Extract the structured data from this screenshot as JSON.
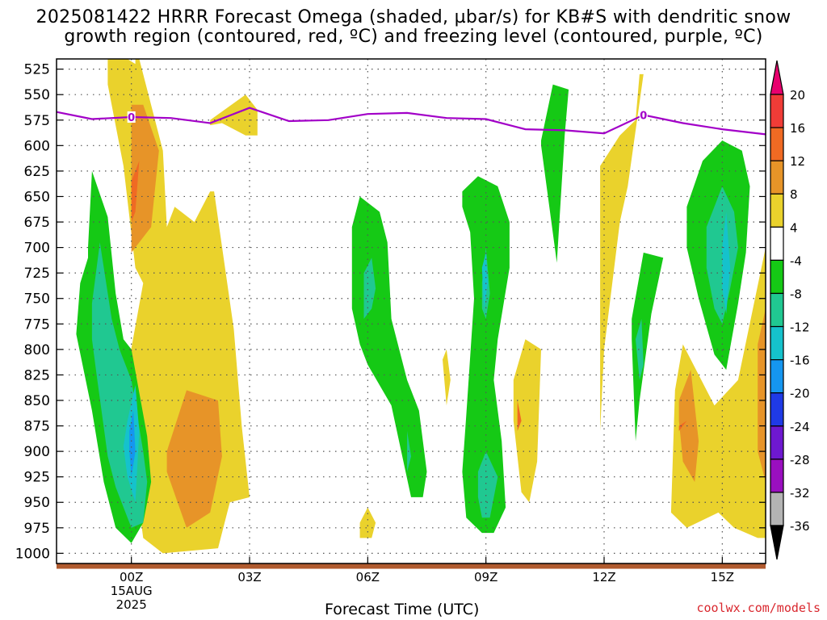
{
  "title": {
    "line1": "2025081422 HRRR Forecast Omega (shaded, µbar/s) for KB#S with dendritic snow",
    "line2": "growth region (contoured, red, ºC) and freezing level (contoured, purple, ºC)"
  },
  "credit": "coolwx.com/models",
  "chart_data": {
    "type": "heatmap",
    "title": "2025081422 HRRR Forecast Omega (shaded, µbar/s) for KB#S with dendritic snow growth region (contoured, red, ºC) and freezing level (contoured, purple, ºC)",
    "xlabel": "Forecast Time (UTC)",
    "ylabel": "",
    "x_units": "hours relative to 2025-08-15 00Z",
    "xlim": [
      -1.9,
      16.1
    ],
    "ylim": [
      1010,
      515
    ],
    "x_ticks": [
      {
        "x": 0,
        "label": "00Z",
        "sub": [
          "15AUG",
          "2025"
        ]
      },
      {
        "x": 3,
        "label": "03Z"
      },
      {
        "x": 6,
        "label": "06Z"
      },
      {
        "x": 9,
        "label": "09Z"
      },
      {
        "x": 12,
        "label": "12Z"
      },
      {
        "x": 15,
        "label": "15Z"
      }
    ],
    "y_ticks": [
      525,
      550,
      575,
      600,
      625,
      650,
      675,
      700,
      725,
      750,
      775,
      800,
      825,
      850,
      875,
      900,
      925,
      950,
      975,
      1000
    ],
    "grid": true,
    "colorbar": {
      "labels": [
        "20",
        "16",
        "12",
        "8",
        "4",
        "-4",
        "-8",
        "-12",
        "-16",
        "-20",
        "-24",
        "-28",
        "-32",
        "-36"
      ],
      "colors": [
        "#e8006e",
        "#f03c37",
        "#f06a23",
        "#e79428",
        "#ead22c",
        "#ffffff",
        "#15c915",
        "#20c891",
        "#15c2cc",
        "#1596f0",
        "#1f3ae6",
        "#6e18d0",
        "#9a0fbf",
        "#b4b4b4",
        "#000000"
      ]
    },
    "freezing_level": {
      "label": "0",
      "color": "#a200c8",
      "x": [
        -1.9,
        -1,
        0,
        1,
        2,
        3,
        4,
        5,
        6,
        7,
        8,
        9,
        10,
        11,
        12,
        13,
        14,
        15,
        16.1
      ],
      "y": [
        567,
        574,
        572,
        573,
        578,
        563,
        576,
        575,
        569,
        568,
        573,
        574,
        584,
        585,
        588,
        570,
        578,
        584,
        589
      ],
      "label_x": [
        0,
        13
      ]
    },
    "ground": {
      "color": "#b05a2e",
      "pressure": 1012
    },
    "regions": [
      {
        "level": "4",
        "x": [
          -0.6,
          -0.1,
          0.1,
          0.1,
          0.2,
          0.4,
          0.8,
          0.9,
          1.1,
          1.6,
          2.0,
          2.1,
          2.6,
          2.8,
          3.0,
          2.5,
          2.2,
          0.8,
          0.3,
          0.0,
          -0.1,
          0.3,
          0.1,
          -0.2,
          -0.6
        ],
        "y": [
          515,
          515,
          520,
          515,
          515,
          545,
          605,
          680,
          660,
          675,
          645,
          645,
          780,
          875,
          945,
          950,
          995,
          1000,
          985,
          895,
          820,
          735,
          720,
          620,
          540
        ]
      },
      {
        "level": "4",
        "x": [
          2.0,
          2.9,
          3.2,
          3.2,
          2.9,
          2.3,
          2.0
        ],
        "y": [
          575,
          550,
          565,
          590,
          590,
          578,
          580
        ]
      },
      {
        "level": "4",
        "x": [
          5.8,
          6.0,
          6.2,
          6.1,
          5.8
        ],
        "y": [
          970,
          955,
          970,
          985,
          985
        ]
      },
      {
        "level": "4",
        "x": [
          7.9,
          8.0,
          8.1,
          8.0
        ],
        "y": [
          810,
          800,
          830,
          855
        ]
      },
      {
        "level": "4",
        "x": [
          9.7,
          10.0,
          10.4,
          10.3,
          10.1,
          9.9,
          9.7
        ],
        "y": [
          830,
          790,
          800,
          910,
          950,
          940,
          870
        ]
      },
      {
        "level": "4",
        "x": [
          11.9,
          12.4,
          12.8,
          12.9,
          13.0,
          12.6,
          12.4,
          12.0,
          11.9,
          11.9
        ],
        "y": [
          620,
          590,
          575,
          530,
          530,
          640,
          675,
          800,
          880,
          760
        ]
      },
      {
        "level": "4",
        "x": [
          13.8,
          14.0,
          14.8,
          15.4,
          16.1,
          16.1,
          15.9,
          15.3,
          14.9,
          14.1,
          13.7
        ],
        "y": [
          840,
          795,
          855,
          830,
          700,
          985,
          985,
          975,
          960,
          975,
          960
        ]
      },
      {
        "level": "8",
        "x": [
          0.0,
          0.3,
          0.7,
          0.5,
          0.0
        ],
        "y": [
          560,
          560,
          605,
          680,
          705
        ]
      },
      {
        "level": "8",
        "x": [
          0.9,
          1.4,
          2.2,
          2.3,
          2.0,
          1.4,
          0.9
        ],
        "y": [
          900,
          840,
          850,
          905,
          960,
          975,
          920
        ]
      },
      {
        "level": "8",
        "x": [
          13.9,
          14.2,
          14.4,
          14.3,
          14.0,
          13.9
        ],
        "y": [
          850,
          820,
          890,
          930,
          910,
          870
        ]
      },
      {
        "level": "8",
        "x": [
          15.9,
          16.1,
          16.1,
          15.9
        ],
        "y": [
          795,
          760,
          930,
          900
        ]
      },
      {
        "level": "12",
        "x": [
          0.0,
          0.2,
          0.1,
          0.0
        ],
        "y": [
          635,
          615,
          665,
          675
        ]
      },
      {
        "level": "12",
        "x": [
          9.8,
          9.9,
          9.8
        ],
        "y": [
          850,
          870,
          880
        ]
      },
      {
        "level": "12",
        "x": [
          13.9,
          14.1,
          13.9
        ],
        "y": [
          875,
          870,
          880
        ]
      },
      {
        "level": "-4",
        "x": [
          -1.1,
          -1.0,
          -0.6,
          -0.4,
          -0.2,
          0.0,
          0.4,
          0.5,
          0.3,
          0.0,
          -0.4,
          -0.6,
          -0.7,
          -1.0,
          -1.4,
          -1.3,
          -1.1
        ],
        "y": [
          700,
          625,
          670,
          745,
          790,
          800,
          885,
          930,
          970,
          990,
          975,
          945,
          930,
          860,
          785,
          735,
          710
        ]
      },
      {
        "level": "-4",
        "x": [
          5.6,
          5.8,
          6.3,
          6.5,
          6.6,
          7.0,
          7.3,
          7.5,
          7.4,
          7.1,
          6.6,
          6.0,
          5.8,
          5.6
        ],
        "y": [
          680,
          650,
          665,
          695,
          770,
          830,
          860,
          920,
          945,
          945,
          855,
          815,
          795,
          760
        ]
      },
      {
        "level": "-4",
        "x": [
          8.4,
          8.8,
          9.3,
          9.6,
          9.6,
          9.3,
          9.2,
          9.4,
          9.5,
          9.2,
          8.9,
          8.5,
          8.4,
          8.5,
          8.7,
          8.6,
          8.4
        ],
        "y": [
          645,
          630,
          640,
          675,
          720,
          790,
          830,
          890,
          955,
          980,
          980,
          965,
          920,
          865,
          750,
          685,
          660
        ]
      },
      {
        "level": "-4",
        "x": [
          10.4,
          10.7,
          11.1,
          11.0,
          10.8,
          10.4
        ],
        "y": [
          595,
          540,
          545,
          590,
          715,
          600
        ]
      },
      {
        "level": "-4",
        "x": [
          12.7,
          13.0,
          13.5,
          13.2,
          12.9,
          12.8,
          12.7
        ],
        "y": [
          770,
          705,
          710,
          765,
          850,
          890,
          790
        ]
      },
      {
        "level": "-4",
        "x": [
          14.1,
          14.5,
          15.0,
          15.5,
          15.7,
          15.6,
          15.4,
          15.1,
          14.8,
          14.4,
          14.1
        ],
        "y": [
          660,
          615,
          595,
          605,
          640,
          705,
          755,
          820,
          805,
          750,
          700
        ]
      },
      {
        "level": "-8",
        "x": [
          -1.0,
          -0.8,
          -0.5,
          -0.3,
          0.0,
          0.3,
          0.4,
          0.3,
          0.0,
          -0.4,
          -0.6,
          -0.9,
          -1.0
        ],
        "y": [
          755,
          695,
          770,
          800,
          830,
          900,
          930,
          970,
          975,
          935,
          905,
          820,
          790
        ]
      },
      {
        "level": "-8",
        "x": [
          5.9,
          6.1,
          6.2,
          6.1,
          5.9,
          5.9
        ],
        "y": [
          725,
          710,
          740,
          760,
          770,
          745
        ]
      },
      {
        "level": "-8",
        "x": [
          7.0,
          7.1,
          7.0
        ],
        "y": [
          880,
          905,
          920
        ]
      },
      {
        "level": "-8",
        "x": [
          8.9,
          9.0,
          9.1,
          9.0,
          8.9
        ],
        "y": [
          735,
          700,
          745,
          770,
          760
        ]
      },
      {
        "level": "-8",
        "x": [
          8.8,
          9.0,
          9.3,
          9.1,
          8.9,
          8.8
        ],
        "y": [
          920,
          900,
          925,
          965,
          965,
          945
        ]
      },
      {
        "level": "-8",
        "x": [
          12.8,
          12.95,
          13.0,
          12.9
        ],
        "y": [
          790,
          770,
          815,
          830
        ]
      },
      {
        "level": "-8",
        "x": [
          14.6,
          15.0,
          15.3,
          15.4,
          15.2,
          15.0,
          14.8,
          14.6
        ],
        "y": [
          680,
          640,
          665,
          700,
          740,
          775,
          760,
          720
        ]
      },
      {
        "level": "-12",
        "x": [
          -0.1,
          0.1,
          0.2,
          0.1,
          -0.1,
          -0.2
        ],
        "y": [
          870,
          835,
          880,
          950,
          925,
          895
        ]
      },
      {
        "level": "-12",
        "x": [
          15.0,
          15.1,
          15.2,
          15.1,
          15.0
        ],
        "y": [
          700,
          665,
          720,
          765,
          740
        ]
      },
      {
        "level": "-16",
        "x": [
          -0.05,
          0.05,
          0.1,
          0.0,
          -0.05
        ],
        "y": [
          880,
          860,
          900,
          925,
          900
        ]
      },
      {
        "level": "-12",
        "x": [
          8.9,
          9.0,
          9.05,
          8.95
        ],
        "y": [
          720,
          705,
          735,
          760
        ]
      }
    ]
  }
}
